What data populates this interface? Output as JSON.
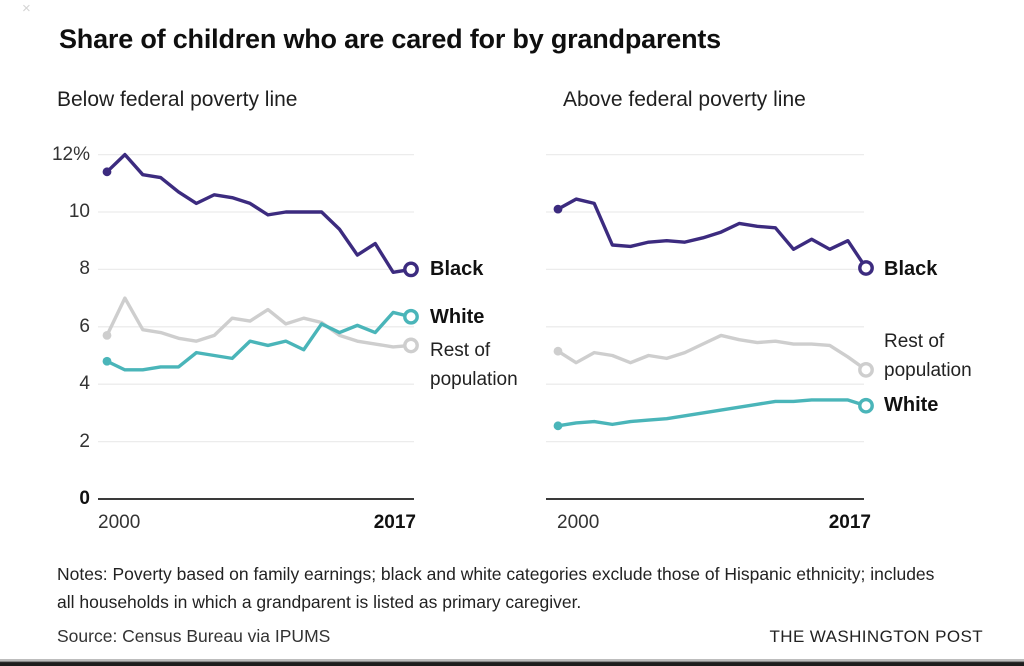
{
  "page": {
    "title": "Share of children who are cared for by grandparents",
    "close_icon": "×",
    "notes": "Notes: Poverty based on family earnings; black and white categories exclude those of Hispanic ethnicity; includes all households in which a grandparent is listed as primary caregiver.",
    "source": "Source: Census Bureau via IPUMS",
    "credit": "THE WASHINGTON POST"
  },
  "colors": {
    "black_series": "#3c2b7f",
    "white_series": "#4ab5b9",
    "rest_series": "#cecece",
    "gridline": "#ececec",
    "axis": "#3a3a3a",
    "title_text": "#0f0f0f",
    "tick_text": "#333333"
  },
  "chart_data": [
    {
      "type": "line",
      "title": "Below federal poverty line",
      "x": [
        2000,
        2001,
        2002,
        2003,
        2004,
        2005,
        2006,
        2007,
        2008,
        2009,
        2010,
        2011,
        2012,
        2013,
        2014,
        2015,
        2016,
        2017
      ],
      "x_axis_labels": [
        "2000",
        "2017"
      ],
      "ylim": [
        0,
        12
      ],
      "y_ticks": [
        "12%",
        "10",
        "8",
        "6",
        "4",
        "2",
        "0"
      ],
      "grid": true,
      "legend_position": "right-of-line-ends",
      "units": "percent",
      "series": [
        {
          "name": "Black",
          "color": "#3c2b7f",
          "values": [
            11.4,
            12.0,
            11.3,
            11.2,
            10.7,
            10.3,
            10.6,
            10.5,
            10.3,
            9.9,
            10.0,
            10.0,
            10.0,
            9.4,
            8.5,
            8.9,
            7.9,
            8.0
          ]
        },
        {
          "name": "White",
          "color": "#4ab5b9",
          "values": [
            4.8,
            4.5,
            4.5,
            4.6,
            4.6,
            5.1,
            5.0,
            4.9,
            5.5,
            5.35,
            5.5,
            5.2,
            6.1,
            5.8,
            6.05,
            5.8,
            6.5,
            6.35
          ]
        },
        {
          "name": "Rest of population",
          "color": "#cecece",
          "values": [
            5.7,
            7.0,
            5.9,
            5.8,
            5.6,
            5.5,
            5.7,
            6.3,
            6.2,
            6.6,
            6.1,
            6.3,
            6.15,
            5.7,
            5.5,
            5.4,
            5.3,
            5.35
          ]
        }
      ]
    },
    {
      "type": "line",
      "title": "Above federal poverty line",
      "x": [
        2000,
        2001,
        2002,
        2003,
        2004,
        2005,
        2006,
        2007,
        2008,
        2009,
        2010,
        2011,
        2012,
        2013,
        2014,
        2015,
        2016,
        2017
      ],
      "x_axis_labels": [
        "2000",
        "2017"
      ],
      "ylim": [
        0,
        12
      ],
      "y_ticks": [],
      "grid": true,
      "legend_position": "right-of-line-ends",
      "units": "percent",
      "series": [
        {
          "name": "Black",
          "color": "#3c2b7f",
          "values": [
            10.1,
            10.45,
            10.3,
            8.85,
            8.8,
            8.95,
            9.0,
            8.95,
            9.1,
            9.3,
            9.6,
            9.5,
            9.45,
            8.7,
            9.05,
            8.7,
            9.0,
            8.05
          ]
        },
        {
          "name": "White",
          "color": "#4ab5b9",
          "values": [
            2.55,
            2.65,
            2.7,
            2.6,
            2.7,
            2.75,
            2.8,
            2.9,
            3.0,
            3.1,
            3.2,
            3.3,
            3.4,
            3.4,
            3.45,
            3.45,
            3.45,
            3.25
          ]
        },
        {
          "name": "Rest of population",
          "color": "#cecece",
          "values": [
            5.15,
            4.75,
            5.1,
            5.0,
            4.75,
            5.0,
            4.9,
            5.1,
            5.4,
            5.7,
            5.55,
            5.45,
            5.5,
            5.4,
            5.4,
            5.35,
            4.95,
            4.5
          ]
        }
      ]
    }
  ]
}
